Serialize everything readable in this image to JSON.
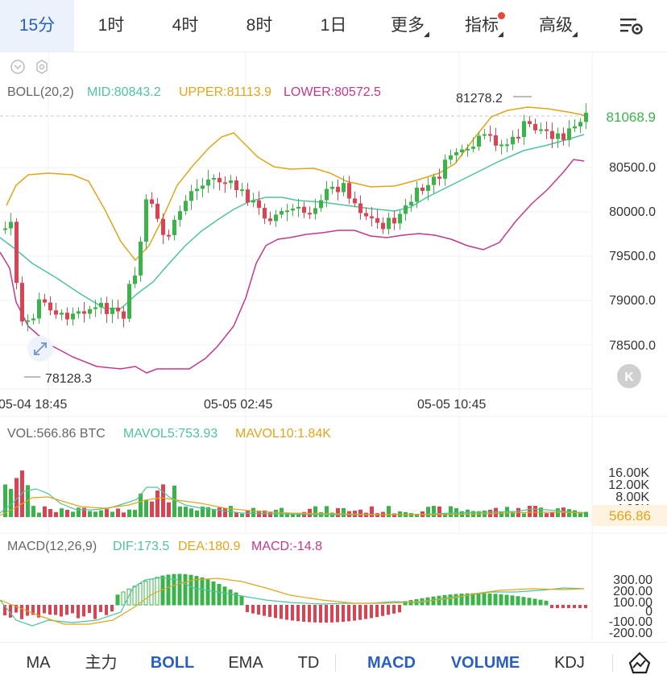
{
  "timeframe_tabs": [
    {
      "label": "15分",
      "active": true
    },
    {
      "label": "1时",
      "active": false
    },
    {
      "label": "4时",
      "active": false
    },
    {
      "label": "8时",
      "active": false
    },
    {
      "label": "1日",
      "active": false
    }
  ],
  "more_label": "更多",
  "indicator_label": "指标",
  "advanced_label": "高级",
  "boll_legend": {
    "name": "BOLL(20,2)",
    "mid": "MID:80843.2",
    "upper": "UPPER:81113.9",
    "lower": "LOWER:80572.5"
  },
  "price_axis": [
    "80500.0",
    "80000.0",
    "79500.0",
    "79000.0",
    "78500.0"
  ],
  "current_price": "81068.9",
  "high_label": "81278.2",
  "low_label": "78128.3",
  "time_axis": [
    "05-04 18:45",
    "05-05 02:45",
    "05-05 10:45"
  ],
  "vol_legend": {
    "vol": "VOL:566.86 BTC",
    "mavol5": "MAVOL5:753.93",
    "mavol10": "MAVOL10:1.84K"
  },
  "vol_axis": [
    "16.00K",
    "12.00K",
    "8.00K",
    "4.00K"
  ],
  "vol_current": "566.86",
  "macd_legend": {
    "name": "MACD(12,26,9)",
    "dif": "DIF:173.5",
    "dea": "DEA:180.9",
    "macd": "MACD:-14.8"
  },
  "macd_axis": [
    "300.00",
    "200.00",
    "100.00",
    "0",
    "-100.00",
    "-200.00"
  ],
  "bottom_tabs": [
    "MA",
    "主力",
    "BOLL",
    "EMA",
    "TD",
    "MACD",
    "VOLUME",
    "KDJ"
  ],
  "colors": {
    "up": "#3bb34a",
    "down": "#d94352",
    "mid": "#4fc3a1",
    "upper": "#e0a51c",
    "lower": "#c2388f",
    "accent": "#2a5fc2"
  },
  "chart_data": {
    "type": "candlestick",
    "interval": "15分",
    "y_range": [
      78100,
      81350
    ],
    "indicators": {
      "BOLL": {
        "MID": 80843.2,
        "UPPER": 81113.9,
        "LOWER": 80572.5
      },
      "VOL": {
        "VOL": 566.86,
        "MAVOL5": 753.93,
        "MAVOL10": 1840
      },
      "MACD": {
        "DIF": 173.5,
        "DEA": 180.9,
        "MACD": -14.8
      }
    },
    "last_price": 81068.9,
    "high": 81278.2,
    "low": 78128.3
  }
}
